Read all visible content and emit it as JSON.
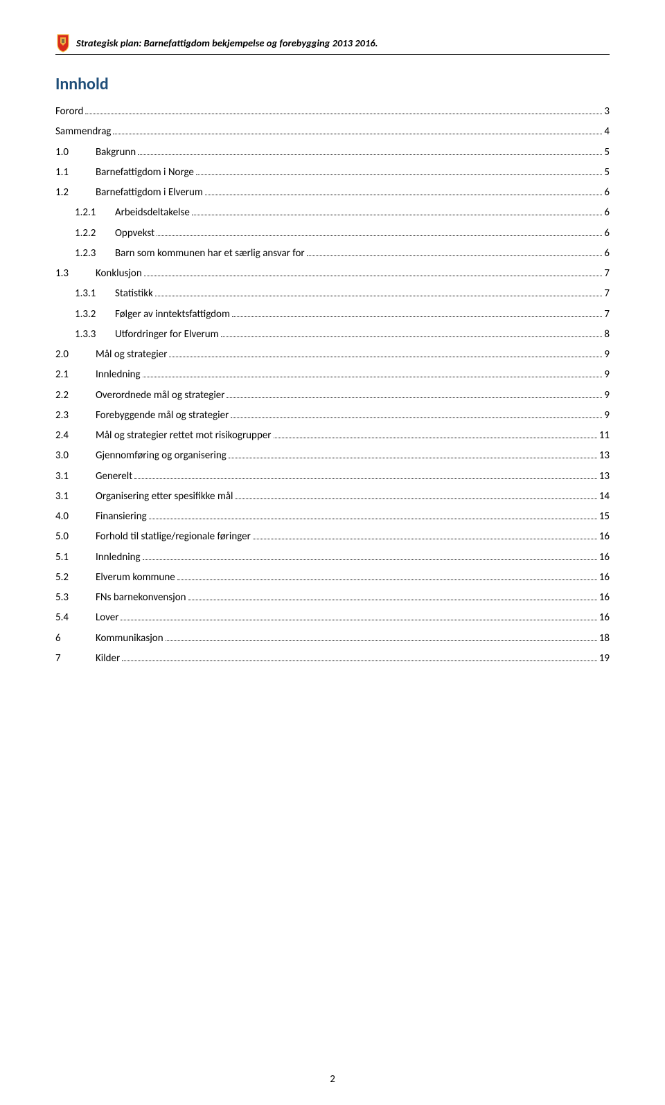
{
  "header": {
    "title": "Strategisk plan: Barnefattigdom bekjempelse og forebygging 2013 2016.",
    "crest_colors": {
      "shield": "#d92b1c",
      "border": "#f3c94a",
      "accent": "#404040"
    }
  },
  "toc": {
    "title": "Innhold",
    "title_color": "#1f4e79",
    "entries": [
      {
        "level": 0,
        "num": "",
        "label": "Forord",
        "page": "3"
      },
      {
        "level": 0,
        "num": "",
        "label": "Sammendrag",
        "page": "4"
      },
      {
        "level": 1,
        "num": "1.0",
        "label": "Bakgrunn",
        "page": "5"
      },
      {
        "level": 2,
        "num": "1.1",
        "label": "Barnefattigdom i Norge",
        "page": "5"
      },
      {
        "level": 2,
        "num": "1.2",
        "label": "Barnefattigdom i Elverum",
        "page": "6"
      },
      {
        "level": 3,
        "num": "1.2.1",
        "label": "Arbeidsdeltakelse",
        "page": "6"
      },
      {
        "level": 3,
        "num": "1.2.2",
        "label": "Oppvekst",
        "page": "6"
      },
      {
        "level": 3,
        "num": "1.2.3",
        "label": "Barn som kommunen har et særlig ansvar for",
        "page": "6"
      },
      {
        "level": 2,
        "num": "1.3",
        "label": "Konklusjon",
        "page": "7"
      },
      {
        "level": 3,
        "num": "1.3.1",
        "label": "Statistikk",
        "page": "7"
      },
      {
        "level": 3,
        "num": "1.3.2",
        "label": "Følger av inntektsfattigdom",
        "page": "7"
      },
      {
        "level": 3,
        "num": "1.3.3",
        "label": "Utfordringer for Elverum",
        "page": "8"
      },
      {
        "level": 1,
        "num": "2.0",
        "label": "Mål og strategier",
        "page": "9"
      },
      {
        "level": 2,
        "num": "2.1",
        "label": "Innledning",
        "page": "9"
      },
      {
        "level": 2,
        "num": "2.2",
        "label": "Overordnede mål og strategier",
        "page": "9"
      },
      {
        "level": 2,
        "num": "2.3",
        "label": "Forebyggende mål og strategier",
        "page": "9"
      },
      {
        "level": 2,
        "num": "2.4",
        "label": "Mål og strategier rettet mot risikogrupper",
        "page": "11"
      },
      {
        "level": 1,
        "num": "3.0",
        "label": "Gjennomføring og organisering",
        "page": "13"
      },
      {
        "level": 2,
        "num": "3.1",
        "label": "Generelt",
        "page": "13"
      },
      {
        "level": 2,
        "num": "3.1",
        "label": "Organisering etter spesifikke mål",
        "page": "14"
      },
      {
        "level": 1,
        "num": "4.0",
        "label": "Finansiering",
        "page": "15"
      },
      {
        "level": 1,
        "num": "5.0",
        "label": "Forhold til statlige/regionale føringer",
        "page": "16"
      },
      {
        "level": 2,
        "num": "5.1",
        "label": "Innledning",
        "page": "16"
      },
      {
        "level": 2,
        "num": "5.2",
        "label": "Elverum kommune",
        "page": "16"
      },
      {
        "level": 2,
        "num": "5.3",
        "label": "FNs barnekonvensjon",
        "page": "16"
      },
      {
        "level": 2,
        "num": "5.4",
        "label": "Lover",
        "page": "16"
      },
      {
        "level": 1,
        "num": "6",
        "label": "Kommunikasjon",
        "page": "18"
      },
      {
        "level": 1,
        "num": "7",
        "label": "Kilder",
        "page": "19"
      }
    ]
  },
  "page_number": "2"
}
